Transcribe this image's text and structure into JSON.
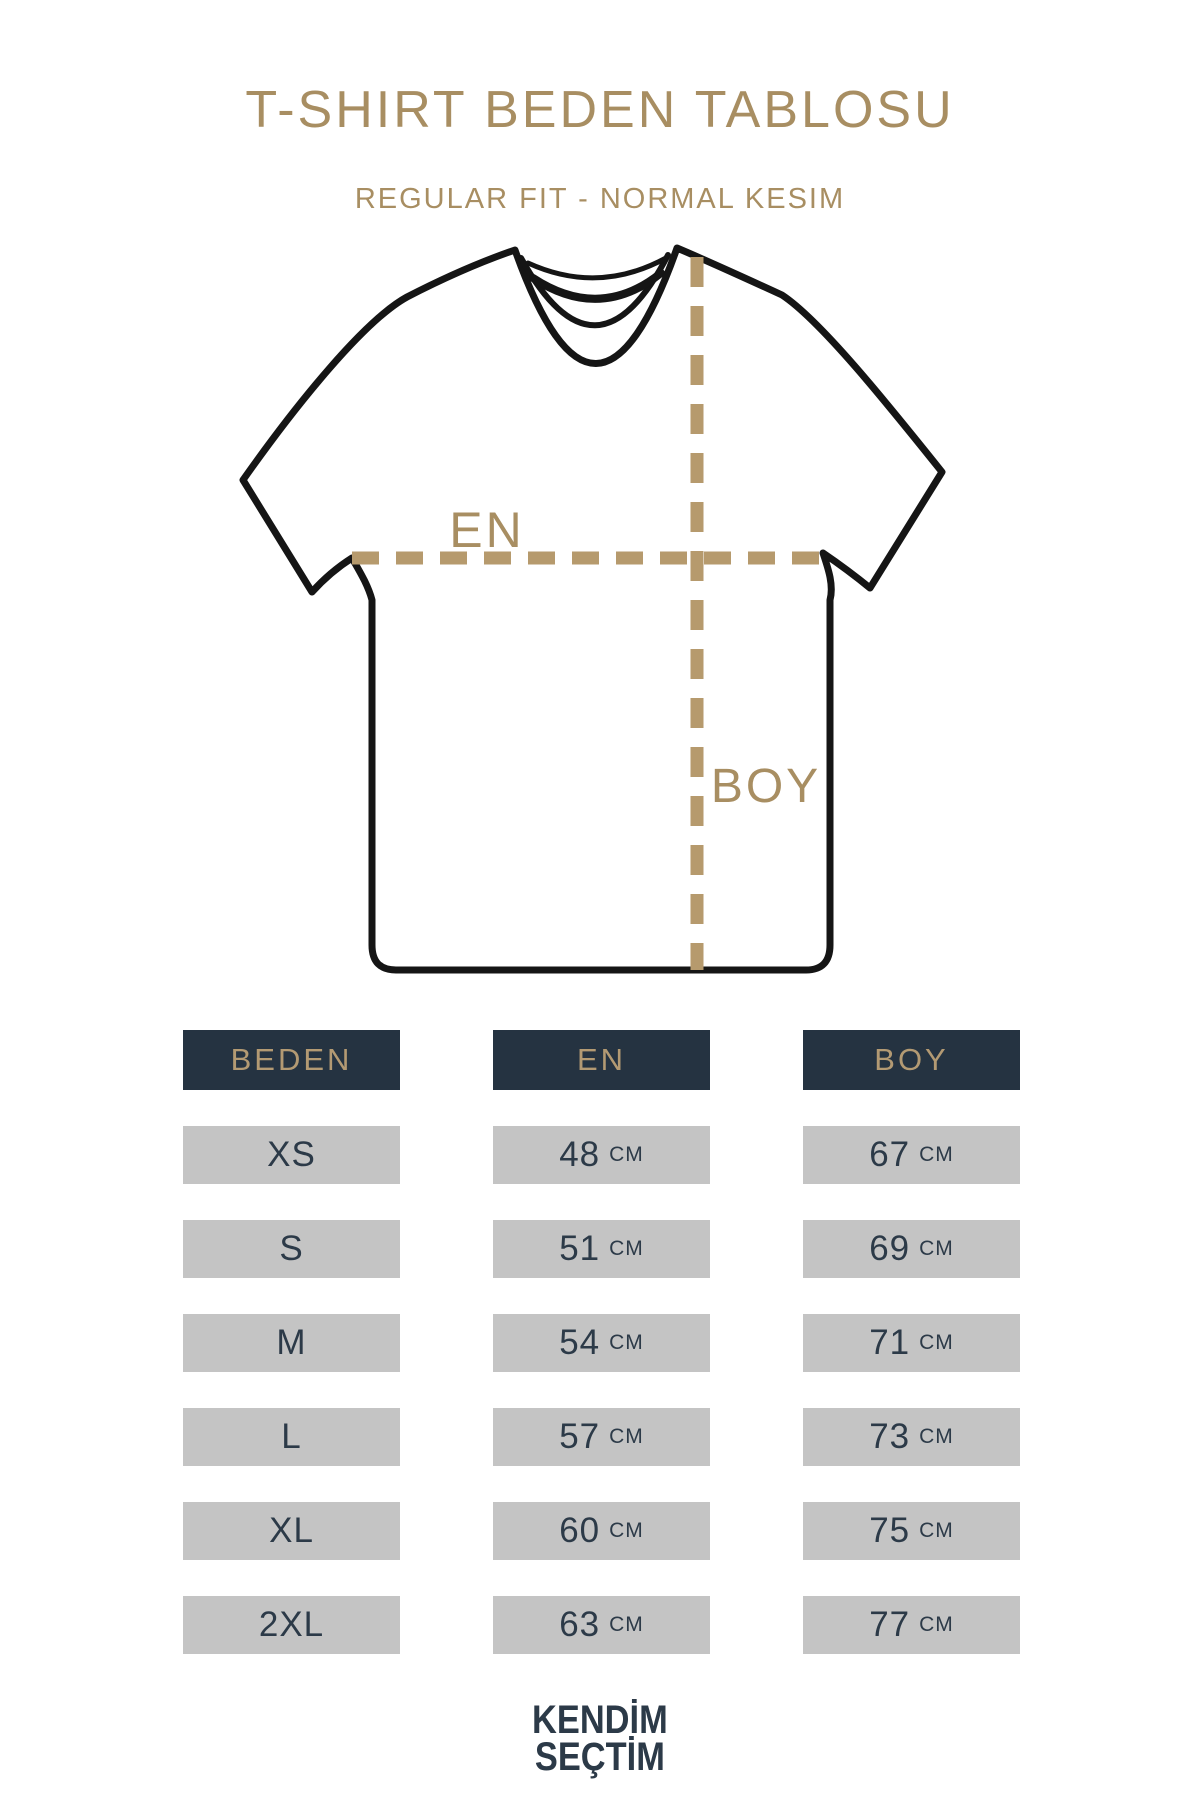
{
  "title": "T-SHIRT BEDEN TABLOSU",
  "subtitle": "REGULAR FIT - NORMAL KESIM",
  "diagram": {
    "width_label": "EN",
    "length_label": "BOY"
  },
  "table": {
    "headers": [
      "BEDEN",
      "EN",
      "BOY"
    ],
    "unit": "CM",
    "rows": [
      {
        "size": "XS",
        "en": "48",
        "boy": "67"
      },
      {
        "size": "S",
        "en": "51",
        "boy": "69"
      },
      {
        "size": "M",
        "en": "54",
        "boy": "71"
      },
      {
        "size": "L",
        "en": "57",
        "boy": "73"
      },
      {
        "size": "XL",
        "en": "60",
        "boy": "75"
      },
      {
        "size": "2XL",
        "en": "63",
        "boy": "77"
      }
    ]
  },
  "brand": {
    "line1": "KENDİM",
    "line2": "SEÇTİM"
  },
  "colors": {
    "accent": "#a88e62",
    "accent_light": "#b39a73",
    "line": "#b69a6d",
    "header_bg": "#253341",
    "row_bg": "#c4c4c4",
    "text_dark": "#2c3a48",
    "outline": "#151515"
  }
}
